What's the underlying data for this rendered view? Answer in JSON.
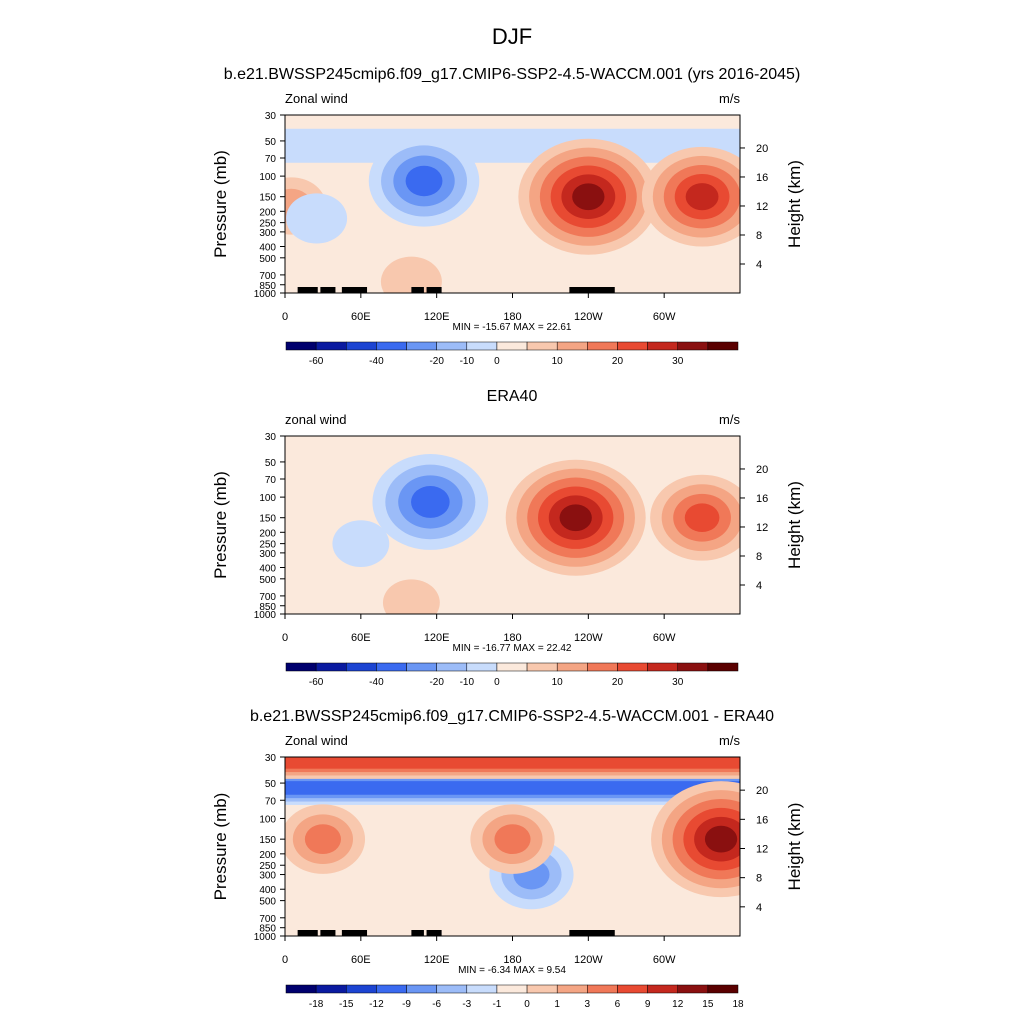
{
  "figure": {
    "title": "DJF"
  },
  "colors": {
    "panel_scale": [
      "#00006e",
      "#0a1aa0",
      "#1c44d2",
      "#3a6af0",
      "#6a96f4",
      "#9cbcf8",
      "#c8dcfc",
      "#fbe9dc",
      "#f8c8ae",
      "#f4a584",
      "#f07858",
      "#e84a32",
      "#c4281e",
      "#8a1010",
      "#5a0000"
    ],
    "diff_scale": [
      "#00006e",
      "#0a1aa0",
      "#1c44d2",
      "#3a6af0",
      "#6a96f4",
      "#9cbcf8",
      "#c8dcfc",
      "#fbe9dc",
      "#f8c8ae",
      "#f4a584",
      "#f07858",
      "#e84a32",
      "#c4281e",
      "#8a1010",
      "#5a0000"
    ],
    "topography": "#000000"
  },
  "chart_data": [
    {
      "type": "heatmap",
      "panel_title": "b.e21.BWSSP245cmip6.f09_g17.CMIP6-SSP2-4.5-WACCM.001 (yrs 2016-2045)",
      "left_label": "Zonal wind",
      "right_label": "m/s",
      "ylabel": "Pressure (mb)",
      "y2label": "Height (km)",
      "xticks": [
        "0",
        "60E",
        "120E",
        "180",
        "120W",
        "60W"
      ],
      "xtick_lon": [
        0,
        60,
        120,
        180,
        240,
        300
      ],
      "xlim": [
        0,
        360
      ],
      "yticks": [
        "30",
        "50",
        "70",
        "100",
        "150",
        "200",
        "250",
        "300",
        "400",
        "500",
        "700",
        "850",
        "1000"
      ],
      "ytick_p": [
        30,
        50,
        70,
        100,
        150,
        200,
        250,
        300,
        400,
        500,
        700,
        850,
        1000
      ],
      "ylim": [
        1000,
        30
      ],
      "y2ticks": [
        "20",
        "16",
        "12",
        "8",
        "4"
      ],
      "y2tick_km": [
        20,
        16,
        12,
        8,
        4
      ],
      "stats": "MIN = -15.67  MAX =  22.61",
      "min": -15.67,
      "max": 22.61,
      "colorbar_labels": [
        "-60",
        "-40",
        "-20",
        "-10",
        "0",
        "10",
        "20",
        "30"
      ],
      "colorbar_label_index": [
        1,
        3,
        5,
        6,
        7,
        9,
        11,
        13
      ],
      "features": [
        {
          "type": "band",
          "p_center": 55,
          "value": -4
        },
        {
          "type": "blob",
          "lon": 110,
          "p": 110,
          "value": -15.67
        },
        {
          "type": "blob",
          "lon": 240,
          "p": 150,
          "value": 22.61
        },
        {
          "type": "blob",
          "lon": 330,
          "p": 150,
          "value": 18
        },
        {
          "type": "blob",
          "lon": 5,
          "p": 180,
          "value": 6
        },
        {
          "type": "blob",
          "lon": 100,
          "p": 800,
          "value": 4
        },
        {
          "type": "blob",
          "lon": 25,
          "p": 230,
          "value": -4
        }
      ],
      "topo": true
    },
    {
      "type": "heatmap",
      "panel_title": "ERA40",
      "left_label": "zonal wind",
      "right_label": "m/s",
      "ylabel": "Pressure (mb)",
      "y2label": "Height (km)",
      "xticks": [
        "0",
        "60E",
        "120E",
        "180",
        "120W",
        "60W"
      ],
      "xtick_lon": [
        0,
        60,
        120,
        180,
        240,
        300
      ],
      "xlim": [
        0,
        360
      ],
      "yticks": [
        "30",
        "50",
        "70",
        "100",
        "150",
        "200",
        "250",
        "300",
        "400",
        "500",
        "700",
        "850",
        "1000"
      ],
      "ytick_p": [
        30,
        50,
        70,
        100,
        150,
        200,
        250,
        300,
        400,
        500,
        700,
        850,
        1000
      ],
      "ylim": [
        1000,
        30
      ],
      "y2ticks": [
        "20",
        "16",
        "12",
        "8",
        "4"
      ],
      "y2tick_km": [
        20,
        16,
        12,
        8,
        4
      ],
      "stats": "MIN = -16.77  MAX =  22.42",
      "min": -16.77,
      "max": 22.42,
      "colorbar_labels": [
        "-60",
        "-40",
        "-20",
        "-10",
        "0",
        "10",
        "20",
        "30"
      ],
      "colorbar_label_index": [
        1,
        3,
        5,
        6,
        7,
        9,
        11,
        13
      ],
      "features": [
        {
          "type": "blob",
          "lon": 115,
          "p": 110,
          "value": -16.77
        },
        {
          "type": "blob",
          "lon": 230,
          "p": 150,
          "value": 22.42
        },
        {
          "type": "blob",
          "lon": 330,
          "p": 150,
          "value": 14
        },
        {
          "type": "blob",
          "lon": 60,
          "p": 250,
          "value": -3
        },
        {
          "type": "blob",
          "lon": 100,
          "p": 800,
          "value": 3
        }
      ],
      "topo": false
    },
    {
      "type": "heatmap",
      "panel_title": "b.e21.BWSSP245cmip6.f09_g17.CMIP6-SSP2-4.5-WACCM.001 - ERA40",
      "left_label": "Zonal wind",
      "right_label": "m/s",
      "ylabel": "Pressure (mb)",
      "y2label": "Height (km)",
      "xticks": [
        "0",
        "60E",
        "120E",
        "180",
        "120W",
        "60W"
      ],
      "xtick_lon": [
        0,
        60,
        120,
        180,
        240,
        300
      ],
      "xlim": [
        0,
        360
      ],
      "yticks": [
        "30",
        "50",
        "70",
        "100",
        "150",
        "200",
        "250",
        "300",
        "400",
        "500",
        "700",
        "850",
        "1000"
      ],
      "ytick_p": [
        30,
        50,
        70,
        100,
        150,
        200,
        250,
        300,
        400,
        500,
        700,
        850,
        1000
      ],
      "ylim": [
        1000,
        30
      ],
      "y2ticks": [
        "20",
        "16",
        "12",
        "8",
        "4"
      ],
      "y2tick_km": [
        20,
        16,
        12,
        8,
        4
      ],
      "stats": "MIN =  -6.34  MAX =   9.54",
      "min": -6.34,
      "max": 9.54,
      "colorbar_labels": [
        "-18",
        "-15",
        "-12",
        "-9",
        "-6",
        "-3",
        "-1",
        "0",
        "1",
        "3",
        "6",
        "9",
        "12",
        "15",
        "18"
      ],
      "colorbar_label_index": [
        1,
        2,
        3,
        4,
        5,
        6,
        7,
        8,
        9,
        10,
        11,
        12,
        13,
        14,
        15
      ],
      "features": [
        {
          "type": "band",
          "p_center": 55,
          "value": -6.34
        },
        {
          "type": "band",
          "p_center": 33,
          "value": 6
        },
        {
          "type": "blob",
          "lon": 195,
          "p": 300,
          "value": -4
        },
        {
          "type": "blob",
          "lon": 345,
          "p": 150,
          "value": 9.54
        },
        {
          "type": "blob",
          "lon": 30,
          "p": 150,
          "value": 4
        },
        {
          "type": "blob",
          "lon": 180,
          "p": 150,
          "value": 4
        }
      ],
      "topo": true
    }
  ]
}
